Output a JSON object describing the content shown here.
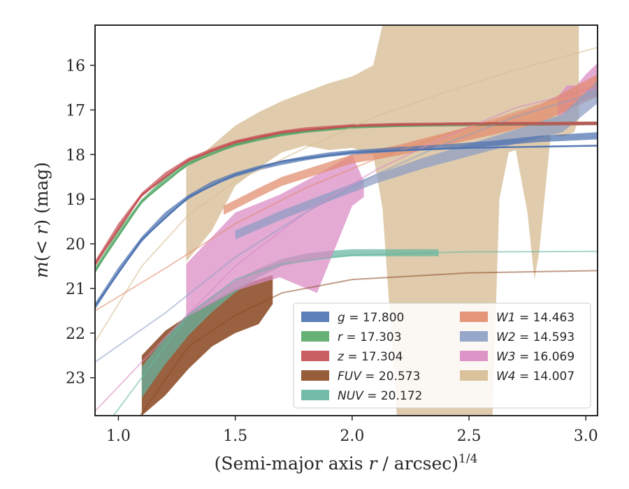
{
  "chart_data": {
    "type": "area",
    "xlabel": "(Semi-major axis r / arcsec)^1/4",
    "ylabel": "m(< r) (mag)",
    "xlim": [
      0.9,
      3.05
    ],
    "ylim": [
      23.85,
      15.1
    ],
    "y_inverted": true,
    "x_ticks": [
      "1.0",
      "1.5",
      "2.0",
      "2.5",
      "3.0"
    ],
    "y_ticks": [
      "16",
      "17",
      "18",
      "19",
      "20",
      "21",
      "22",
      "23"
    ],
    "legend_placement": "lower-right",
    "series": [
      {
        "name": "g = 17.800",
        "color": "#4c72b0",
        "band": {
          "x": [
            0.9,
            1.0,
            1.1,
            1.2,
            1.3,
            1.4,
            1.5,
            1.6,
            1.7,
            1.8,
            1.9,
            2.0,
            2.2,
            2.4,
            2.6,
            2.8,
            3.05
          ],
          "y": [
            21.4,
            20.6,
            19.9,
            19.35,
            18.95,
            18.65,
            18.45,
            18.3,
            18.18,
            18.08,
            18.0,
            17.95,
            17.88,
            17.82,
            17.75,
            17.65,
            17.58
          ],
          "width": [
            0.07,
            0.07,
            0.06,
            0.06,
            0.05,
            0.05,
            0.05,
            0.05,
            0.05,
            0.05,
            0.05,
            0.05,
            0.05,
            0.05,
            0.06,
            0.07,
            0.08
          ]
        },
        "model": {
          "x": [
            0.9,
            1.1,
            1.3,
            1.5,
            1.7,
            2.0,
            2.5,
            3.05
          ],
          "y": [
            21.4,
            19.9,
            18.95,
            18.45,
            18.15,
            17.95,
            17.85,
            17.8
          ]
        }
      },
      {
        "name": "r = 17.303",
        "color": "#55a868",
        "band": {
          "x": [
            0.9,
            1.0,
            1.1,
            1.2,
            1.3,
            1.4,
            1.5,
            1.6,
            1.7,
            1.8,
            2.0,
            2.2,
            2.4,
            2.6,
            2.8,
            3.05
          ],
          "y": [
            20.6,
            19.75,
            19.05,
            18.55,
            18.2,
            17.95,
            17.78,
            17.65,
            17.55,
            17.47,
            17.38,
            17.34,
            17.33,
            17.32,
            17.31,
            17.3
          ],
          "width": [
            0.07,
            0.06,
            0.05,
            0.05,
            0.05,
            0.04,
            0.04,
            0.04,
            0.04,
            0.04,
            0.04,
            0.04,
            0.04,
            0.04,
            0.04,
            0.04
          ]
        },
        "model": {
          "x": [
            0.9,
            1.1,
            1.3,
            1.5,
            1.7,
            2.0,
            2.5,
            3.05
          ],
          "y": [
            20.6,
            19.05,
            18.2,
            17.78,
            17.55,
            17.38,
            17.32,
            17.3
          ]
        }
      },
      {
        "name": "z = 17.304",
        "color": "#c44e52",
        "band": {
          "x": [
            0.9,
            1.0,
            1.1,
            1.2,
            1.3,
            1.4,
            1.5,
            1.6,
            1.7,
            1.8,
            2.0,
            2.2,
            2.4,
            2.6,
            2.8,
            3.05
          ],
          "y": [
            20.45,
            19.6,
            18.9,
            18.45,
            18.12,
            17.9,
            17.72,
            17.6,
            17.5,
            17.43,
            17.36,
            17.33,
            17.32,
            17.31,
            17.31,
            17.3
          ],
          "width": [
            0.07,
            0.06,
            0.05,
            0.05,
            0.05,
            0.04,
            0.04,
            0.04,
            0.04,
            0.04,
            0.04,
            0.04,
            0.04,
            0.04,
            0.04,
            0.04
          ]
        },
        "model": {
          "x": [
            0.9,
            1.1,
            1.3,
            1.5,
            1.7,
            2.0,
            2.5,
            3.05
          ],
          "y": [
            20.45,
            18.9,
            18.12,
            17.72,
            17.5,
            17.36,
            17.31,
            17.3
          ]
        }
      },
      {
        "name": "FUV = 20.573",
        "color": "#8c4b25",
        "band": {
          "x": [
            1.1,
            1.2,
            1.3,
            1.4,
            1.5,
            1.6,
            1.66
          ],
          "y_upper": [
            22.5,
            21.95,
            21.6,
            21.3,
            21.0,
            20.8,
            20.7
          ],
          "y_lower": [
            23.85,
            23.4,
            22.8,
            22.3,
            22.0,
            21.8,
            21.35
          ]
        },
        "model": {
          "x": [
            0.9,
            1.1,
            1.3,
            1.5,
            1.7,
            2.0,
            2.5,
            3.05
          ],
          "y": [
            25.2,
            23.8,
            22.3,
            21.6,
            21.1,
            20.8,
            20.65,
            20.6
          ]
        }
      },
      {
        "name": "NUV = 20.172",
        "color": "#64b5a0",
        "band": {
          "x": [
            1.1,
            1.2,
            1.3,
            1.4,
            1.5,
            1.6,
            1.7,
            1.8,
            1.9,
            2.0,
            2.2,
            2.37
          ],
          "y": [
            23.1,
            22.4,
            21.8,
            21.35,
            20.95,
            20.65,
            20.42,
            20.3,
            20.24,
            20.2,
            20.2,
            20.2
          ],
          "width": [
            0.35,
            0.3,
            0.25,
            0.18,
            0.14,
            0.1,
            0.08,
            0.08,
            0.08,
            0.08,
            0.08,
            0.08
          ]
        },
        "model": {
          "x": [
            0.9,
            1.1,
            1.3,
            1.5,
            1.7,
            2.0,
            2.5,
            3.05
          ],
          "y": [
            24.4,
            23.0,
            21.6,
            20.8,
            20.45,
            20.25,
            20.18,
            20.17
          ]
        }
      },
      {
        "name": "W1 = 14.463",
        "color": "#e28a6c",
        "band": {
          "x": [
            1.45,
            1.6,
            1.7,
            1.85,
            2.0,
            2.2,
            2.4,
            2.6,
            2.8,
            3.05
          ],
          "y": [
            19.25,
            18.85,
            18.6,
            18.35,
            18.1,
            17.9,
            17.65,
            17.4,
            17.1,
            16.45
          ],
          "width": [
            0.1,
            0.1,
            0.1,
            0.1,
            0.1,
            0.12,
            0.14,
            0.16,
            0.2,
            0.25
          ]
        },
        "model": {
          "x": [
            0.9,
            1.2,
            1.5,
            1.8,
            2.1,
            2.4,
            2.7,
            3.05
          ],
          "y": [
            21.5,
            20.55,
            19.55,
            18.75,
            18.1,
            17.55,
            17.05,
            16.45
          ]
        }
      },
      {
        "name": "W2 = 14.593",
        "color": "#8c9dc4",
        "band": {
          "x": [
            1.5,
            1.7,
            1.9,
            2.1,
            2.3,
            2.5,
            2.7,
            2.9,
            3.05
          ],
          "y": [
            19.8,
            19.35,
            18.95,
            18.55,
            18.2,
            17.9,
            17.6,
            17.3,
            16.6
          ],
          "width": [
            0.1,
            0.1,
            0.1,
            0.1,
            0.12,
            0.14,
            0.16,
            0.2,
            0.25
          ]
        },
        "model": {
          "x": [
            0.9,
            1.2,
            1.5,
            1.8,
            2.1,
            2.4,
            2.7,
            3.05
          ],
          "y": [
            22.65,
            21.55,
            20.3,
            19.3,
            18.45,
            17.75,
            17.15,
            16.6
          ]
        }
      },
      {
        "name": "W3 = 16.069",
        "color": "#d989c3",
        "band": {
          "x": [
            1.29,
            1.5,
            1.69,
            1.85,
            2.0,
            2.05
          ],
          "y_upper": [
            20.45,
            19.3,
            18.9,
            18.45,
            18.0,
            18.6
          ],
          "y_lower": [
            21.65,
            21.05,
            20.75,
            21.1,
            19.15,
            18.95
          ]
        },
        "band_right": {
          "x": [
            2.88,
            2.92,
            2.96,
            3.0,
            3.05
          ],
          "y_upper": [
            16.7,
            16.45,
            16.45,
            16.2,
            15.95
          ],
          "y_lower": [
            17.15,
            17.05,
            16.85,
            16.75,
            16.7
          ]
        },
        "model": {
          "x": [
            0.9,
            1.2,
            1.5,
            1.8,
            2.1,
            2.4,
            2.7,
            3.05
          ],
          "y": [
            23.75,
            22.1,
            20.5,
            19.3,
            18.35,
            17.6,
            16.95,
            16.5
          ]
        }
      },
      {
        "name": "W4 = 14.007",
        "color": "#d6bb92",
        "band": {
          "x": [
            1.29,
            1.4,
            1.5,
            1.6,
            1.7,
            1.8,
            1.9,
            2.0,
            2.09,
            2.13,
            2.2,
            2.3,
            2.4,
            2.5,
            2.6,
            2.63,
            2.67,
            2.7,
            2.75,
            2.78,
            2.8,
            2.85,
            2.9,
            2.95,
            2.97
          ],
          "y_upper": [
            18.3,
            17.8,
            17.35,
            17.05,
            16.8,
            16.6,
            16.4,
            16.25,
            16.0,
            15.1,
            15.1,
            15.1,
            15.1,
            15.1,
            15.1,
            15.1,
            15.1,
            15.1,
            15.1,
            15.1,
            15.1,
            15.1,
            15.1,
            15.1,
            15.1
          ],
          "y_lower": [
            20.4,
            19.7,
            18.7,
            18.3,
            17.95,
            17.8,
            17.9,
            17.85,
            18.0,
            19.2,
            24.5,
            24.5,
            24.5,
            24.5,
            24.0,
            19.0,
            17.95,
            17.9,
            19.3,
            20.8,
            20.2,
            17.55,
            17.6,
            17.5,
            17.2
          ]
        },
        "model": {
          "x": [
            0.9,
            1.1,
            1.3,
            1.5,
            1.8,
            2.1,
            2.4,
            2.7,
            3.05
          ],
          "y": [
            22.2,
            20.5,
            19.35,
            18.6,
            17.85,
            17.15,
            16.6,
            16.1,
            15.6
          ]
        }
      }
    ]
  }
}
